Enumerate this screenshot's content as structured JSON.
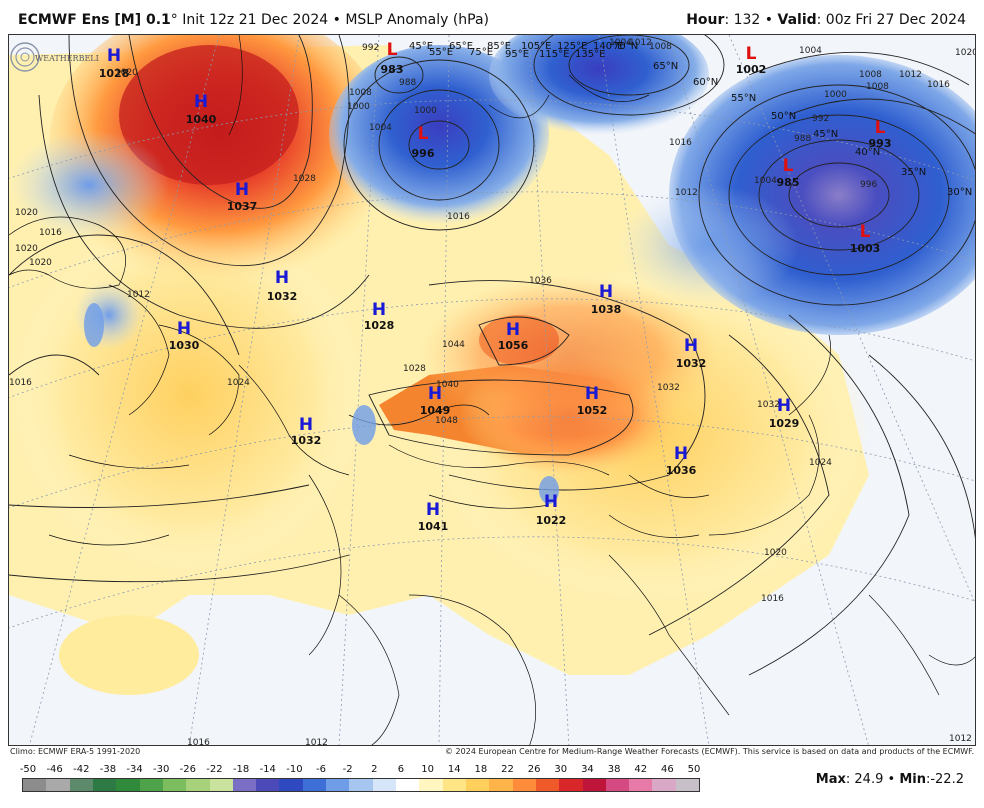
{
  "header": {
    "model": "ECMWF Ens [M] 0.1",
    "degree": "°",
    "init": "Init 12z 21 Dec 2024",
    "bullet": "•",
    "product": "MSLP Anomaly (hPa)",
    "hour_label": "Hour",
    "hour_value": ": 132",
    "valid_label": "Valid",
    "valid_value": ": 00z Fri 27 Dec 2024"
  },
  "credits": {
    "climo": "Climo: ECMWF ERA-5 1991-2020",
    "copyright": "© 2024 European Centre for Medium-Range Weather Forecasts (ECMWF). This service is based on data and products of the ECMWF."
  },
  "logo": {
    "text": "WEATHERBELL"
  },
  "colorbar": {
    "ticks": [
      "-50",
      "-46",
      "-42",
      "-38",
      "-34",
      "-30",
      "-26",
      "-22",
      "-18",
      "-14",
      "-10",
      "-6",
      "-2",
      "2",
      "6",
      "10",
      "14",
      "18",
      "22",
      "26",
      "30",
      "34",
      "38",
      "42",
      "46",
      "50"
    ],
    "colors": [
      "#8c8c8c",
      "#a9a9a9",
      "#5e8a6c",
      "#2e7a45",
      "#2f8a3c",
      "#4da24a",
      "#7cbd5e",
      "#a8d27a",
      "#c9e29e",
      "#7a6fc4",
      "#4c49b8",
      "#2f49c0",
      "#3d6fd6",
      "#6f9de8",
      "#a6c6f0",
      "#d6e6f8",
      "#ffffff",
      "#fff6c2",
      "#ffe585",
      "#ffd05c",
      "#ffb44a",
      "#ff8c3a",
      "#f05a2a",
      "#d8262a",
      "#c0153a",
      "#d64a82",
      "#e87aa8",
      "#d9a8c6",
      "#c8c0c8"
    ]
  },
  "maxmin": {
    "max_label": "Max",
    "max_value": ": 24.9",
    "sep": "•",
    "min_label": "Min",
    "min_value": ":-22.2"
  },
  "map": {
    "pressure_systems": [
      {
        "type": "H",
        "value": "1028",
        "color": "#1a1ad6"
      },
      {
        "type": "H",
        "value": "1040",
        "color": "#1a1ad6"
      },
      {
        "type": "H",
        "value": "1037",
        "color": "#1a1ad6"
      },
      {
        "type": "H",
        "value": "1032",
        "color": "#1a1ad6"
      },
      {
        "type": "H",
        "value": "1028",
        "color": "#1a1ad6"
      },
      {
        "type": "H",
        "value": "1030",
        "color": "#1a1ad6"
      },
      {
        "type": "H",
        "value": "1032",
        "color": "#1a1ad6"
      },
      {
        "type": "H",
        "value": "1049",
        "color": "#1a1ad6"
      },
      {
        "type": "H",
        "value": "1056",
        "color": "#1a1ad6"
      },
      {
        "type": "H",
        "value": "1038",
        "color": "#1a1ad6"
      },
      {
        "type": "H",
        "value": "1052",
        "color": "#1a1ad6"
      },
      {
        "type": "H",
        "value": "1032",
        "color": "#1a1ad6"
      },
      {
        "type": "H",
        "value": "1029",
        "color": "#1a1ad6"
      },
      {
        "type": "H",
        "value": "1036",
        "color": "#1a1ad6"
      },
      {
        "type": "H",
        "value": "1041",
        "color": "#1a1ad6"
      },
      {
        "type": "H",
        "value": "1022",
        "color": "#1a1ad6"
      },
      {
        "type": "L",
        "value": "983",
        "color": "#e01010"
      },
      {
        "type": "L",
        "value": "996",
        "color": "#e01010"
      },
      {
        "type": "L",
        "value": "1002",
        "color": "#e01010"
      },
      {
        "type": "L",
        "value": "993",
        "color": "#e01010"
      },
      {
        "type": "L",
        "value": "985",
        "color": "#e01010"
      },
      {
        "type": "L",
        "value": "1003",
        "color": "#e01010"
      }
    ],
    "isobar_labels": [
      "1020",
      "1016",
      "1020",
      "1016",
      "1012",
      "1008",
      "1004",
      "1000",
      "992",
      "988",
      "1000",
      "1004",
      "1008",
      "1012",
      "1016",
      "1020",
      "1024",
      "1020",
      "1016",
      "1012",
      "1016",
      "1020",
      "1008",
      "1004",
      "1000",
      "992",
      "988",
      "996",
      "1032",
      "1036",
      "1044",
      "1040",
      "1048",
      "1028",
      "1032",
      "1024",
      "1028",
      "1012",
      "1016",
      "1020",
      "1012",
      "1004",
      "1008",
      "1016",
      "1012"
    ],
    "lat_labels": [
      "70°N",
      "65°N",
      "60°N",
      "55°N",
      "50°N",
      "45°N",
      "40°N",
      "35°N",
      "30°N"
    ],
    "lon_labels": [
      "45°E",
      "55°E",
      "65°E",
      "75°E",
      "85°E",
      "95°E",
      "105°E",
      "115°E",
      "125°E",
      "135°E",
      "140°E"
    ]
  }
}
